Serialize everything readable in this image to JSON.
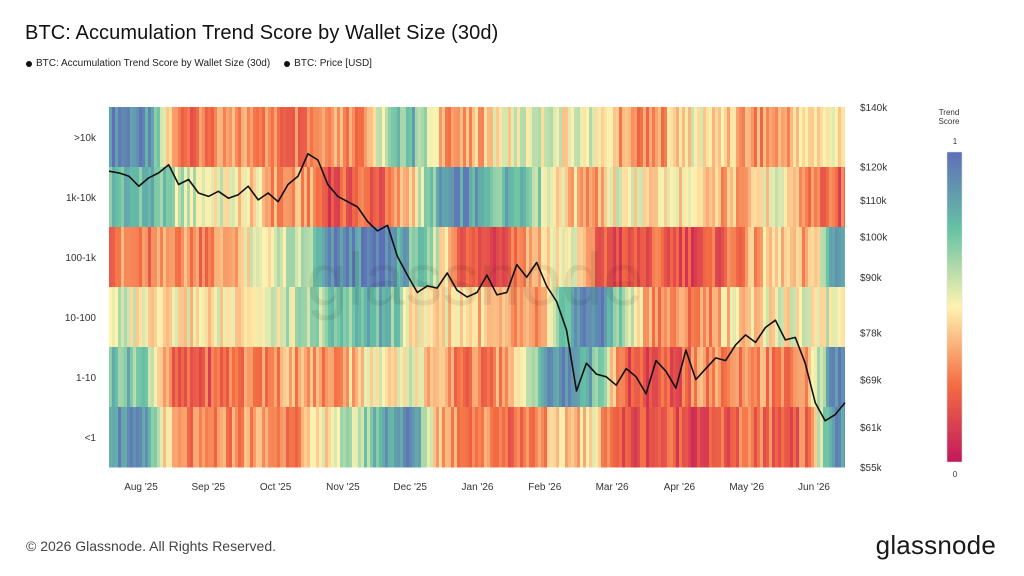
{
  "title": "BTC: Accumulation Trend Score by Wallet Size (30d)",
  "legend": [
    {
      "label": "BTC: Accumulation Trend Score by Wallet Size (30d)",
      "color": "#111111"
    },
    {
      "label": "BTC: Price [USD]",
      "color": "#111111"
    }
  ],
  "footer": "© 2026 Glassnode. All Rights Reserved.",
  "brand": "glassnode",
  "watermark": "glassnode",
  "colorbar": {
    "title_line1": "Trend",
    "title_line2": "Score",
    "max_label": "1",
    "min_label": "0"
  },
  "colors": {
    "price_line": "#111111"
  },
  "chart_data": {
    "type": "heatmap",
    "row_labels": [
      ">10k",
      "1k-10k",
      "100-1k",
      "10-100",
      "1-10",
      "<1"
    ],
    "x_tick_labels": [
      "Aug '25",
      "Sep '25",
      "Oct '25",
      "Nov '25",
      "Dec '25",
      "Jan '26",
      "Feb '26",
      "Mar '26",
      "Apr '26",
      "May '26",
      "Jun '26"
    ],
    "y_right_tick_labels": [
      "$140k",
      "$120k",
      "$110k",
      "$100k",
      "$90k",
      "$78k",
      "$69k",
      "$61k",
      "$55k"
    ],
    "y_right_tick_values": [
      140000,
      120000,
      110000,
      100000,
      90000,
      78000,
      69000,
      61000,
      55000
    ],
    "y_right_scale": "log",
    "y_right_range": [
      55000,
      140000
    ],
    "colorscale": "Spectral (0 red → 0.5 pale yellow → 1 blue)",
    "score_range": [
      0,
      1
    ],
    "segment_days": 10,
    "scores": {
      ">10k": [
        0.95,
        0.85,
        0.3,
        0.25,
        0.3,
        0.35,
        0.25,
        0.3,
        0.4,
        0.3,
        0.6,
        0.8,
        0.4,
        0.3,
        0.45,
        0.55,
        0.55,
        0.5,
        0.55,
        0.35,
        0.25,
        0.45,
        0.5,
        0.4,
        0.3,
        0.35,
        0.45,
        0.5
      ],
      "1k-10k": [
        0.75,
        0.8,
        0.6,
        0.55,
        0.5,
        0.45,
        0.3,
        0.35,
        0.15,
        0.25,
        0.2,
        0.45,
        0.8,
        0.9,
        0.7,
        0.85,
        0.6,
        0.4,
        0.35,
        0.55,
        0.45,
        0.5,
        0.4,
        0.35,
        0.45,
        0.5,
        0.3,
        0.2
      ],
      "100-1k": [
        0.3,
        0.25,
        0.35,
        0.3,
        0.35,
        0.5,
        0.55,
        0.6,
        0.9,
        0.9,
        0.95,
        0.75,
        0.55,
        0.2,
        0.15,
        0.3,
        0.45,
        0.55,
        0.2,
        0.15,
        0.2,
        0.2,
        0.15,
        0.25,
        0.35,
        0.45,
        0.3,
        0.85
      ],
      "10-100": [
        0.55,
        0.5,
        0.5,
        0.45,
        0.5,
        0.5,
        0.55,
        0.6,
        0.7,
        0.75,
        0.8,
        0.5,
        0.45,
        0.5,
        0.35,
        0.3,
        0.3,
        0.85,
        0.95,
        0.65,
        0.35,
        0.3,
        0.3,
        0.45,
        0.45,
        0.5,
        0.5,
        0.55
      ],
      "1-10": [
        0.75,
        0.7,
        0.15,
        0.2,
        0.25,
        0.3,
        0.35,
        0.35,
        0.3,
        0.45,
        0.5,
        0.55,
        0.35,
        0.25,
        0.3,
        0.4,
        0.85,
        0.9,
        0.75,
        0.2,
        0.15,
        0.2,
        0.3,
        0.3,
        0.35,
        0.25,
        0.3,
        0.95
      ],
      "<1": [
        0.9,
        0.8,
        0.3,
        0.25,
        0.3,
        0.35,
        0.3,
        0.35,
        0.55,
        0.6,
        0.85,
        0.9,
        0.4,
        0.3,
        0.3,
        0.25,
        0.35,
        0.4,
        0.45,
        0.15,
        0.2,
        0.2,
        0.15,
        0.2,
        0.25,
        0.2,
        0.25,
        0.9
      ]
    },
    "price_series_usd": [
      118500,
      118000,
      117000,
      114000,
      116500,
      118000,
      120500,
      114500,
      116000,
      112000,
      111000,
      112500,
      110500,
      111500,
      114000,
      110000,
      112000,
      109500,
      114500,
      117000,
      124000,
      122000,
      114500,
      111000,
      109500,
      108000,
      104000,
      101500,
      103000,
      95000,
      90500,
      86500,
      88000,
      87500,
      91000,
      87000,
      85500,
      86500,
      90500,
      86000,
      86500,
      93000,
      90000,
      93500,
      88000,
      84500,
      78500,
      67000,
      72000,
      70000,
      69500,
      68000,
      71000,
      69500,
      66500,
      72500,
      70500,
      67500,
      74500,
      69000,
      71000,
      73000,
      72500,
      75500,
      77500,
      76000,
      79000,
      80500,
      76500,
      77000,
      72000,
      65000,
      62000,
      63000,
      65000
    ]
  }
}
